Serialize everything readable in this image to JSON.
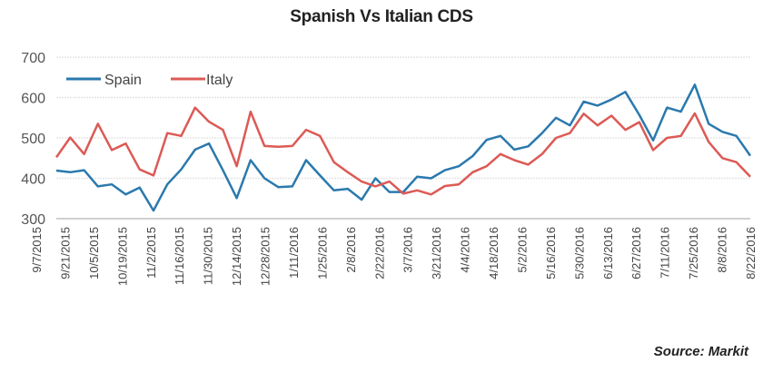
{
  "chart_data": {
    "type": "line",
    "title": "Spanish Vs Italian CDS",
    "xlabel": "",
    "ylabel": "",
    "ylim": [
      300,
      700
    ],
    "yticks": [
      300,
      400,
      500,
      600,
      700
    ],
    "grid": true,
    "legend_position": "top-left",
    "x_tick_labels": [
      "9/7/2015",
      "9/21/2015",
      "10/5/2015",
      "10/19/2015",
      "11/2/2015",
      "11/16/2015",
      "11/30/2015",
      "12/14/2015",
      "12/28/2015",
      "1/11/2016",
      "1/25/2016",
      "2/8/2016",
      "2/22/2016",
      "3/7/2016",
      "3/21/2016",
      "4/4/2016",
      "4/18/2016",
      "5/2/2016",
      "5/16/2016",
      "5/30/2016",
      "6/13/2016",
      "6/27/2016",
      "7/11/2016",
      "7/25/2016",
      "8/8/2016",
      "8/22/2016"
    ],
    "x_note": "weekly observations from 9/7/2015 to 8/22/2016",
    "series": [
      {
        "name": "Spain",
        "color": "#2a79ae",
        "values": [
          419,
          415,
          420,
          380,
          385,
          360,
          377,
          320,
          385,
          422,
          471,
          486,
          420,
          351,
          445,
          400,
          378,
          380,
          445,
          407,
          370,
          374,
          347,
          400,
          366,
          366,
          404,
          400,
          420,
          430,
          455,
          495,
          505,
          471,
          479,
          512,
          550,
          531,
          590,
          580,
          595,
          614,
          557,
          494,
          575,
          565,
          632,
          535,
          515,
          505,
          456
        ]
      },
      {
        "name": "Italy",
        "color": "#dc5a55",
        "values": [
          452,
          501,
          460,
          535,
          470,
          486,
          422,
          407,
          512,
          505,
          575,
          540,
          520,
          430,
          565,
          480,
          478,
          480,
          520,
          505,
          440,
          415,
          392,
          380,
          392,
          362,
          370,
          360,
          381,
          385,
          415,
          430,
          460,
          445,
          434,
          460,
          500,
          512,
          560,
          531,
          555,
          520,
          539,
          470,
          500,
          505,
          561,
          490,
          450,
          440,
          404
        ]
      }
    ]
  },
  "source": "Source: Markit"
}
